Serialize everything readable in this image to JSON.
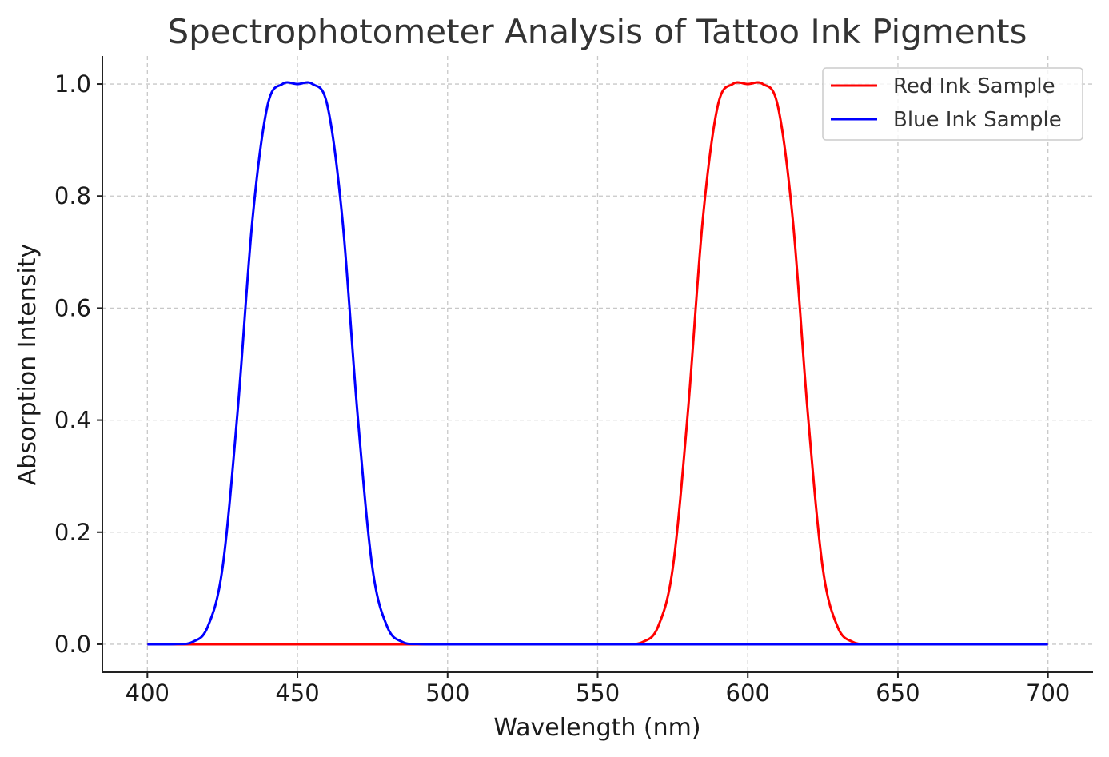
{
  "chart_data": {
    "type": "line",
    "title": "Spectrophotometer Analysis of Tattoo Ink Pigments",
    "xlabel": "Wavelength (nm)",
    "ylabel": "Absorption Intensity",
    "xlim": [
      385,
      715
    ],
    "ylim": [
      -0.05,
      1.05
    ],
    "xticks": [
      400,
      450,
      500,
      550,
      600,
      650,
      700
    ],
    "yticks": [
      0.0,
      0.2,
      0.4,
      0.6,
      0.8,
      1.0
    ],
    "xtick_labels": [
      "400",
      "450",
      "500",
      "550",
      "600",
      "650",
      "700"
    ],
    "ytick_labels": [
      "0.0",
      "0.2",
      "0.4",
      "0.6",
      "0.8",
      "1.0"
    ],
    "grid": true,
    "legend": "top-right",
    "x": [
      400,
      405,
      410,
      415,
      420,
      425,
      430,
      435,
      440,
      445,
      450,
      455,
      460,
      465,
      470,
      475,
      480,
      485,
      490,
      495,
      500,
      505,
      510,
      515,
      520,
      525,
      530,
      535,
      540,
      545,
      550,
      555,
      560,
      565,
      570,
      575,
      580,
      585,
      590,
      595,
      600,
      605,
      610,
      615,
      620,
      625,
      630,
      635,
      640,
      645,
      650,
      655,
      660,
      665,
      670,
      675,
      680,
      685,
      690,
      695,
      700
    ],
    "series": [
      {
        "name": "Red Ink Sample",
        "color": "#ff0000",
        "values": [
          0,
          0,
          0,
          0,
          0,
          0,
          0,
          0,
          0,
          0,
          0,
          0,
          0,
          0,
          0,
          0,
          0,
          0,
          0,
          0,
          0,
          0,
          0,
          0,
          0,
          0,
          0,
          0,
          0,
          0,
          0,
          0,
          0.0004,
          0.004,
          0.03,
          0.135,
          0.411,
          0.757,
          0.961,
          1.0,
          1.0,
          1.0,
          0.961,
          0.757,
          0.411,
          0.135,
          0.03,
          0.004,
          0.0004,
          0,
          0,
          0,
          0,
          0,
          0,
          0,
          0,
          0,
          0,
          0,
          0
        ]
      },
      {
        "name": "Blue Ink Sample",
        "color": "#0000ff",
        "values": [
          0,
          0,
          0.0004,
          0.004,
          0.03,
          0.135,
          0.411,
          0.757,
          0.961,
          1.0,
          1.0,
          1.0,
          0.961,
          0.757,
          0.411,
          0.135,
          0.03,
          0.004,
          0.0004,
          0,
          0,
          0,
          0,
          0,
          0,
          0,
          0,
          0,
          0,
          0,
          0,
          0,
          0,
          0,
          0,
          0,
          0,
          0,
          0,
          0,
          0,
          0,
          0,
          0,
          0,
          0,
          0,
          0,
          0,
          0,
          0,
          0,
          0,
          0,
          0,
          0,
          0,
          0,
          0,
          0,
          0
        ]
      }
    ]
  }
}
